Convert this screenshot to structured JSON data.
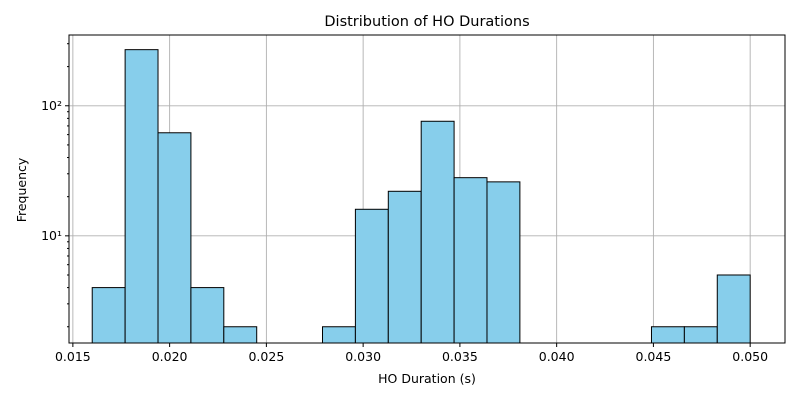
{
  "chart_data": {
    "type": "bar",
    "subtype": "histogram",
    "title": "Distribution of HO Durations",
    "xlabel": "HO Duration (s)",
    "ylabel": "Frequency",
    "yscale": "log",
    "xlim": [
      0.0148,
      0.0518
    ],
    "ylim": [
      1.5,
      350
    ],
    "grid": true,
    "bar_color": "#87CEEB",
    "edge_color": "#000000",
    "x_ticks": [
      0.015,
      0.02,
      0.025,
      0.03,
      0.035,
      0.04,
      0.045,
      0.05
    ],
    "x_tick_labels": [
      "0.015",
      "0.020",
      "0.025",
      "0.030",
      "0.035",
      "0.040",
      "0.045",
      "0.050"
    ],
    "y_ticks": [
      10,
      100
    ],
    "y_tick_labels": [
      "10¹",
      "10²"
    ],
    "bin_edges": [
      0.016,
      0.0177,
      0.0194,
      0.0211,
      0.0228,
      0.0245,
      0.0262,
      0.0279,
      0.0296,
      0.0313,
      0.033,
      0.0347,
      0.0364,
      0.0381,
      0.0398,
      0.0415,
      0.0432,
      0.0449,
      0.0466,
      0.0483,
      0.05
    ],
    "values": [
      4,
      270,
      62,
      4,
      2,
      0,
      0,
      2,
      16,
      22,
      76,
      28,
      26,
      0,
      0,
      0,
      0,
      2,
      2,
      5
    ]
  }
}
